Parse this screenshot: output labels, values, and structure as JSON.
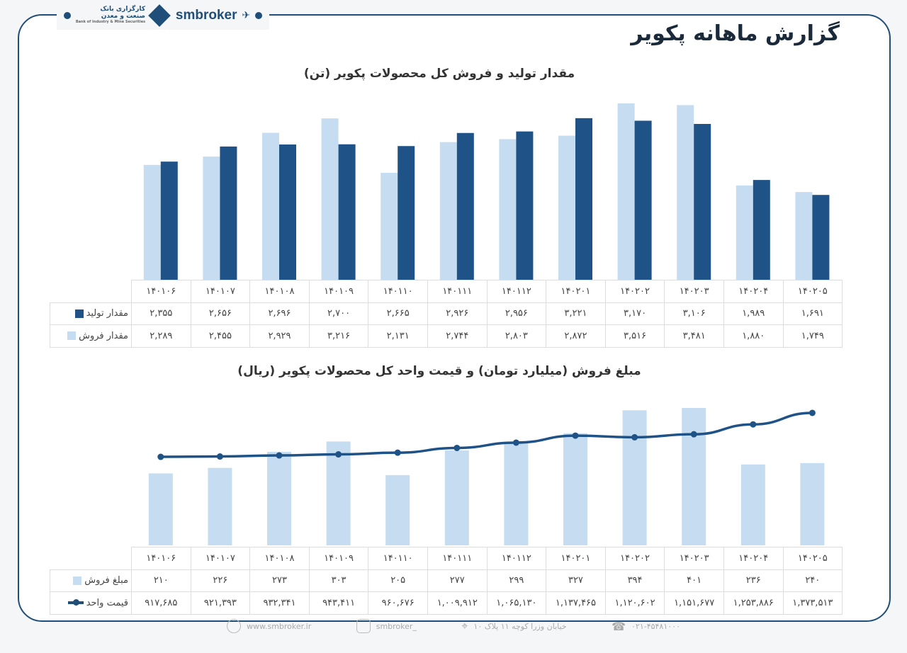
{
  "header": {
    "brand": "smbroker",
    "bank_name_line1": "کارگزاری بانک",
    "bank_name_line2": "صنعت و معدن",
    "bank_name_en": "Bank of Industry & Mine Securities"
  },
  "page_title": "گزارش ماهانه پکویر",
  "footer": {
    "website": "www.smbroker.ir",
    "instagram": "smbroker_",
    "address": "خیابان وزرا کوچه ۱۱ پلاک ۱۰",
    "phone": "۰۲۱-۴۵۴۸۱۰۰۰"
  },
  "colors": {
    "dark": "#1f5287",
    "light": "#c5dcf1",
    "frame": "#1f4e79"
  },
  "chart_data": [
    {
      "type": "bar",
      "title": "مقدار تولید و فروش کل محصولات پکویر (تن)",
      "categories": [
        "۱۴۰۱۰۶",
        "۱۴۰۱۰۷",
        "۱۴۰۱۰۸",
        "۱۴۰۱۰۹",
        "۱۴۰۱۱۰",
        "۱۴۰۱۱۱",
        "۱۴۰۱۱۲",
        "۱۴۰۲۰۱",
        "۱۴۰۲۰۲",
        "۱۴۰۲۰۳",
        "۱۴۰۲۰۴",
        "۱۴۰۲۰۵"
      ],
      "ylim": [
        0,
        3600
      ],
      "legend": "table",
      "series": [
        {
          "name": "مقدار فروش",
          "color": "#c5dcf1",
          "values": [
            2289,
            2455,
            2929,
            3216,
            2131,
            2744,
            2803,
            2872,
            3516,
            3481,
            1880,
            1749
          ],
          "labels": [
            "۲,۲۸۹",
            "۲,۴۵۵",
            "۲,۹۲۹",
            "۳,۲۱۶",
            "۲,۱۳۱",
            "۲,۷۴۴",
            "۲,۸۰۳",
            "۲,۸۷۲",
            "۳,۵۱۶",
            "۳,۴۸۱",
            "۱,۸۸۰",
            "۱,۷۴۹"
          ]
        },
        {
          "name": "مقدار تولید",
          "color": "#1f5287",
          "values": [
            2355,
            2656,
            2696,
            2700,
            2665,
            2926,
            2956,
            3221,
            3170,
            3106,
            1989,
            1691
          ],
          "labels": [
            "۲,۳۵۵",
            "۲,۶۵۶",
            "۲,۶۹۶",
            "۲,۷۰۰",
            "۲,۶۶۵",
            "۲,۹۲۶",
            "۲,۹۵۶",
            "۳,۲۲۱",
            "۳,۱۷۰",
            "۳,۱۰۶",
            "۱,۹۸۹",
            "۱,۶۹۱"
          ]
        }
      ]
    },
    {
      "type": "bar+line",
      "title": "مبلغ فروش (میلیارد تومان) و قیمت واحد کل محصولات پکویر (ریال)",
      "categories": [
        "۱۴۰۱۰۶",
        "۱۴۰۱۰۷",
        "۱۴۰۱۰۸",
        "۱۴۰۱۰۹",
        "۱۴۰۱۱۰",
        "۱۴۰۱۱۱",
        "۱۴۰۱۱۲",
        "۱۴۰۲۰۱",
        "۱۴۰۲۰۲",
        "۱۴۰۲۰۳",
        "۱۴۰۲۰۴",
        "۱۴۰۲۰۵"
      ],
      "legend": "table",
      "series": [
        {
          "name": "مبلغ فروش",
          "type": "bar",
          "color": "#c5dcf1",
          "ylim": [
            0,
            434
          ],
          "values": [
            210,
            226,
            273,
            303,
            205,
            277,
            299,
            327,
            394,
            401,
            236,
            240
          ],
          "labels": [
            "۲۱۰",
            "۲۲۶",
            "۲۷۳",
            "۳۰۳",
            "۲۰۵",
            "۲۷۷",
            "۲۹۹",
            "۳۲۷",
            "۳۹۴",
            "۴۰۱",
            "۲۳۶",
            "۲۴۰"
          ]
        },
        {
          "name": "قیمت واحد",
          "type": "line",
          "color": "#1f5287",
          "ylim": [
            0,
            1542000
          ],
          "values": [
            917685,
            921393,
            932341,
            943411,
            960676,
            1009912,
            1065130,
            1137465,
            1120602,
            1151677,
            1253886,
            1373513
          ],
          "labels": [
            "۹۱۷,۶۸۵",
            "۹۲۱,۳۹۳",
            "۹۳۲,۳۴۱",
            "۹۴۳,۴۱۱",
            "۹۶۰,۶۷۶",
            "۱,۰۰۹,۹۱۲",
            "۱,۰۶۵,۱۳۰",
            "۱,۱۳۷,۴۶۵",
            "۱,۱۲۰,۶۰۲",
            "۱,۱۵۱,۶۷۷",
            "۱,۲۵۳,۸۸۶",
            "۱,۳۷۳,۵۱۳"
          ]
        }
      ]
    }
  ]
}
